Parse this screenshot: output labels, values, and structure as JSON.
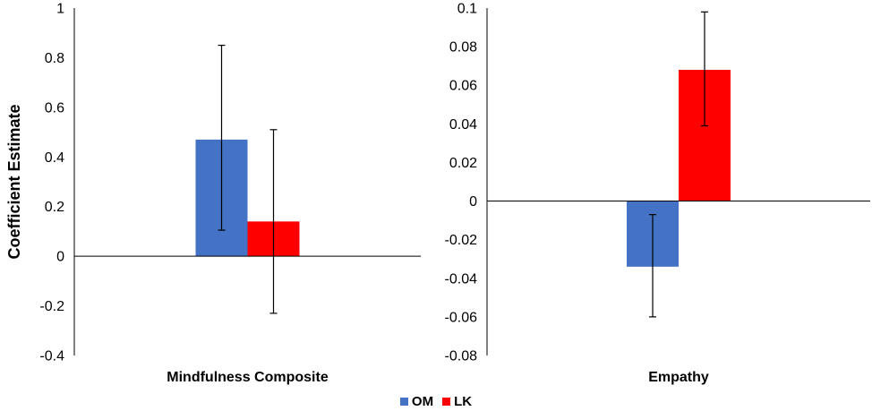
{
  "y_axis_label": "Coefficient Estimate",
  "legend": [
    {
      "name": "OM",
      "color": "#4472C4"
    },
    {
      "name": "LK",
      "color": "#FF0000"
    }
  ],
  "chart_data": [
    {
      "type": "bar",
      "categories": [
        "Mindfulness Composite"
      ],
      "series": [
        {
          "name": "OM",
          "color": "#4472C4",
          "values": [
            0.47
          ],
          "error_low": [
            0.105
          ],
          "error_high": [
            0.85
          ]
        },
        {
          "name": "LK",
          "color": "#FF0000",
          "values": [
            0.14
          ],
          "error_low": [
            -0.23
          ],
          "error_high": [
            0.51
          ]
        }
      ],
      "ylabel": "Coefficient Estimate",
      "ylim": [
        -0.4,
        1
      ],
      "yticks": [
        1,
        0.8,
        0.6,
        0.4,
        0.2,
        0,
        -0.2,
        -0.4
      ],
      "ytick_labels": [
        "1",
        "0.8",
        "0.6",
        "0.4",
        "0.2",
        "0",
        "-0.2",
        "-0.4"
      ],
      "grid": false
    },
    {
      "type": "bar",
      "categories": [
        "Empathy"
      ],
      "series": [
        {
          "name": "OM",
          "color": "#4472C4",
          "values": [
            -0.034
          ],
          "error_low": [
            -0.06
          ],
          "error_high": [
            -0.007
          ]
        },
        {
          "name": "LK",
          "color": "#FF0000",
          "values": [
            0.068
          ],
          "error_low": [
            0.039
          ],
          "error_high": [
            0.098
          ]
        }
      ],
      "ylim": [
        -0.08,
        0.1
      ],
      "yticks": [
        0.1,
        0.08,
        0.06,
        0.04,
        0.02,
        0,
        -0.02,
        -0.04,
        -0.06,
        -0.08
      ],
      "ytick_labels": [
        "0.1",
        "0.08",
        "0.06",
        "0.04",
        "0.02",
        "0",
        "-0.02",
        "-0.04",
        "-0.06",
        "-0.08"
      ],
      "grid": false
    }
  ]
}
